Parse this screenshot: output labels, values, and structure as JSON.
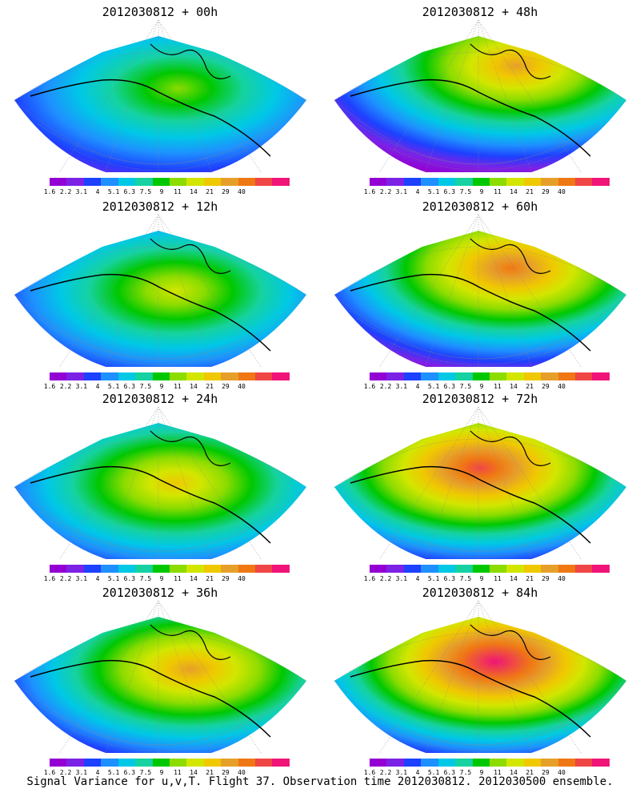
{
  "palette": [
    "#9400d3",
    "#7b22e6",
    "#1e40ff",
    "#1e90ff",
    "#00c8e6",
    "#16d2a0",
    "#00c800",
    "#8cdc00",
    "#d2e600",
    "#f0c800",
    "#e6a02a",
    "#f07814",
    "#f04646",
    "#f01478"
  ],
  "colorbar_labels": [
    "1.6",
    "2.2",
    "3.1",
    "4",
    "5.1",
    "6.3",
    "7.5",
    "9",
    "11",
    "14",
    "21",
    "29",
    "40"
  ],
  "panels": [
    {
      "title": "2012030812 + 00h",
      "lead": 0,
      "hotspot": [
        0.56,
        0.45
      ]
    },
    {
      "title": "2012030812 + 48h",
      "lead": 48,
      "hotspot": [
        0.62,
        0.3
      ]
    },
    {
      "title": "2012030812 + 12h",
      "lead": 12,
      "hotspot": [
        0.55,
        0.5
      ]
    },
    {
      "title": "2012030812 + 60h",
      "lead": 60,
      "hotspot": [
        0.6,
        0.35
      ]
    },
    {
      "title": "2012030812 + 24h",
      "lead": 24,
      "hotspot": [
        0.55,
        0.5
      ]
    },
    {
      "title": "2012030812 + 72h",
      "lead": 72,
      "hotspot": [
        0.5,
        0.4
      ]
    },
    {
      "title": "2012030812 + 36h",
      "lead": 36,
      "hotspot": [
        0.6,
        0.45
      ]
    },
    {
      "title": "2012030812 + 84h",
      "lead": 84,
      "hotspot": [
        0.55,
        0.4
      ]
    }
  ],
  "footer": "Signal Variance for u,v,T. Flight 37. Observation time 2012030812. 2012030500 ensemble."
}
